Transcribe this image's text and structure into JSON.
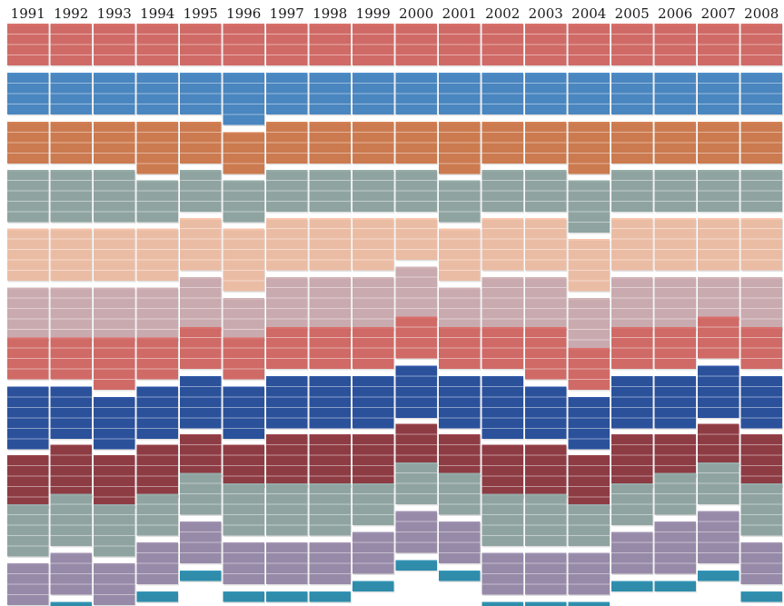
{
  "chart_data": {
    "type": "heatmap",
    "title": "",
    "xlabel": "",
    "ylabel": "",
    "legend": "none",
    "grid": false,
    "categories": [
      "1991",
      "1992",
      "1993",
      "1994",
      "1995",
      "1996",
      "1997",
      "1998",
      "1999",
      "2000",
      "2001",
      "2002",
      "2003",
      "2004",
      "2005",
      "2006",
      "2007",
      "2008"
    ],
    "series": [
      {
        "color": "#d06a66",
        "values": [
          4,
          4,
          4,
          4,
          4,
          4,
          4,
          4,
          4,
          4,
          4,
          4,
          4,
          4,
          4,
          4,
          4,
          4
        ]
      },
      {
        "color": "#4a86bf",
        "values": [
          4,
          4,
          4,
          4,
          4,
          5,
          4,
          4,
          4,
          4,
          4,
          4,
          4,
          4,
          4,
          4,
          4,
          4
        ]
      },
      {
        "color": "#cc7a4f",
        "values": [
          4,
          4,
          4,
          5,
          4,
          4,
          4,
          4,
          4,
          4,
          5,
          4,
          4,
          5,
          4,
          4,
          4,
          4
        ]
      },
      {
        "color": "#8fa4a1",
        "values": [
          5,
          5,
          5,
          4,
          4,
          4,
          4,
          4,
          4,
          4,
          4,
          4,
          4,
          5,
          4,
          4,
          4,
          4
        ]
      },
      {
        "color": "#ebbca4",
        "values": [
          5,
          5,
          5,
          5,
          5,
          6,
          5,
          5,
          5,
          4,
          5,
          5,
          5,
          5,
          5,
          5,
          5,
          5
        ]
      },
      {
        "color": "#c9aaaf",
        "values": [
          5,
          5,
          5,
          5,
          5,
          4,
          5,
          5,
          5,
          5,
          4,
          5,
          5,
          5,
          5,
          5,
          4,
          5
        ]
      },
      {
        "color": "#d06a66",
        "values": [
          4,
          4,
          5,
          4,
          4,
          4,
          4,
          4,
          4,
          4,
          4,
          4,
          5,
          4,
          4,
          4,
          4,
          4
        ]
      },
      {
        "color": "#2b519b",
        "values": [
          6,
          5,
          5,
          5,
          5,
          5,
          5,
          5,
          5,
          5,
          5,
          6,
          5,
          5,
          5,
          5,
          5,
          5
        ]
      },
      {
        "color": "#8e3c44",
        "values": [
          5,
          5,
          5,
          5,
          4,
          4,
          5,
          5,
          5,
          4,
          4,
          5,
          5,
          5,
          5,
          4,
          4,
          5
        ]
      },
      {
        "color": "#8fa4a1",
        "values": [
          5,
          5,
          5,
          4,
          4,
          5,
          5,
          5,
          4,
          4,
          4,
          5,
          5,
          4,
          4,
          4,
          4,
          5
        ]
      },
      {
        "color": "#978aa8",
        "values": [
          4,
          4,
          4,
          4,
          4,
          4,
          4,
          4,
          4,
          4,
          4,
          4,
          4,
          4,
          4,
          5,
          5,
          4
        ]
      },
      {
        "color": "#2f8cab",
        "values": [
          1,
          1,
          1,
          1,
          1,
          1,
          1,
          1,
          1,
          1,
          1,
          1,
          1,
          1,
          1,
          1,
          1,
          1
        ]
      }
    ]
  }
}
